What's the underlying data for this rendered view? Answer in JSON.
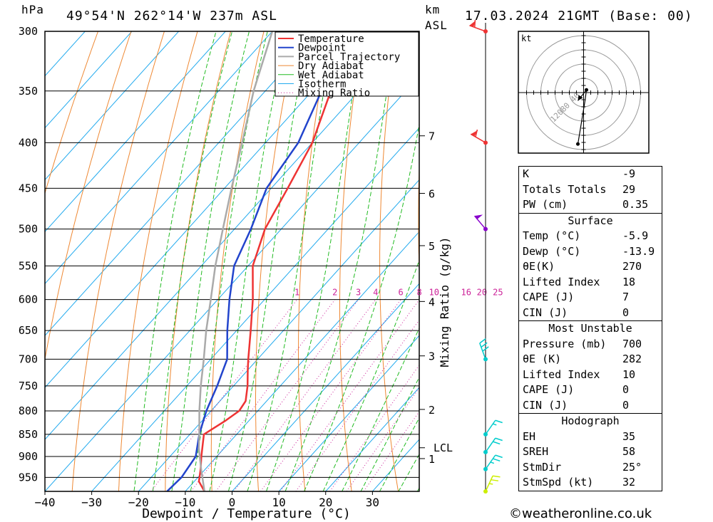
{
  "header": {
    "pressure_unit": "hPa",
    "location": "49°54'N  262°14'W  237m  ASL",
    "km_unit": "km",
    "asl_unit": "ASL",
    "datetime": "17.03.2024  21GMT  (Base: 00)"
  },
  "chart_data": {
    "type": "line",
    "subtype": "skew-T log-P diagram",
    "xlabel": "Dewpoint / Temperature (°C)",
    "ylabel_right": "Mixing Ratio (g/kg)",
    "x_ticks": [
      -40,
      -30,
      -20,
      -10,
      0,
      10,
      20,
      30
    ],
    "x_range": [
      -40,
      40
    ],
    "pressure_levels": [
      300,
      350,
      400,
      450,
      500,
      550,
      600,
      650,
      700,
      750,
      800,
      850,
      900,
      950
    ],
    "p_range": [
      300,
      985
    ],
    "height_km_ticks": [
      {
        "km": "1",
        "p": 905
      },
      {
        "km": "2",
        "p": 797
      },
      {
        "km": "3",
        "p": 694
      },
      {
        "km": "4",
        "p": 603
      },
      {
        "km": "5",
        "p": 522
      },
      {
        "km": "6",
        "p": 456
      },
      {
        "km": "7",
        "p": 393
      }
    ],
    "lcl": {
      "label": "LCL",
      "p": 880
    },
    "mixing_ratio_labels": [
      "1",
      "2",
      "3",
      "4",
      "6",
      "8",
      "10",
      "16",
      "20",
      "25"
    ],
    "mixing_ratio_values": [
      1,
      2,
      3,
      4,
      6,
      8,
      10,
      16,
      20,
      25
    ],
    "mixing_ratio_label_p": 600,
    "legend": [
      "Temperature",
      "Dewpoint",
      "Parcel Trajectory",
      "Dry Adiabat",
      "Wet Adiabat",
      "Isotherm",
      "Mixing Ratio"
    ],
    "legend_position": "top-right",
    "series": [
      {
        "name": "Temperature",
        "color": "#ee3333",
        "points": [
          [
            985,
            -5.9
          ],
          [
            960,
            -9
          ],
          [
            930,
            -11
          ],
          [
            900,
            -13.3
          ],
          [
            870,
            -15.5
          ],
          [
            850,
            -17
          ],
          [
            820,
            -15
          ],
          [
            800,
            -14
          ],
          [
            780,
            -14.5
          ],
          [
            750,
            -17
          ],
          [
            720,
            -20
          ],
          [
            700,
            -22
          ],
          [
            650,
            -27
          ],
          [
            600,
            -32.5
          ],
          [
            550,
            -39
          ],
          [
            500,
            -43.5
          ],
          [
            450,
            -46.5
          ],
          [
            400,
            -50
          ],
          [
            350,
            -56
          ],
          [
            300,
            -63
          ]
        ]
      },
      {
        "name": "Dewpoint",
        "color": "#2244cc",
        "points": [
          [
            985,
            -13.9
          ],
          [
            950,
            -13.5
          ],
          [
            900,
            -14.5
          ],
          [
            850,
            -18
          ],
          [
            800,
            -21
          ],
          [
            750,
            -23.5
          ],
          [
            700,
            -26.5
          ],
          [
            650,
            -32
          ],
          [
            600,
            -37.5
          ],
          [
            550,
            -43
          ],
          [
            500,
            -46.5
          ],
          [
            450,
            -51
          ],
          [
            400,
            -53
          ],
          [
            350,
            -58
          ],
          [
            300,
            -66
          ]
        ]
      },
      {
        "name": "Parcel Trajectory",
        "color": "#aaaaaa",
        "points": [
          [
            985,
            -5.9
          ],
          [
            930,
            -10.9
          ],
          [
            880,
            -15.5
          ],
          [
            850,
            -18
          ],
          [
            800,
            -22.5
          ],
          [
            750,
            -27
          ],
          [
            700,
            -31.5
          ],
          [
            650,
            -36.5
          ],
          [
            600,
            -41.5
          ],
          [
            550,
            -47
          ],
          [
            500,
            -52.5
          ],
          [
            450,
            -58.5
          ],
          [
            400,
            -65
          ],
          [
            350,
            -72.5
          ],
          [
            300,
            -80
          ]
        ]
      }
    ],
    "wind_profile": [
      {
        "p": 985,
        "dir": 25,
        "kt": 25,
        "color": "#ccee00"
      },
      {
        "p": 930,
        "dir": 35,
        "kt": 25,
        "color": "#00cccc"
      },
      {
        "p": 890,
        "dir": 35,
        "kt": 20,
        "color": "#00cccc"
      },
      {
        "p": 850,
        "dir": 35,
        "kt": 15,
        "color": "#00cccc"
      },
      {
        "p": 700,
        "dir": 340,
        "kt": 30,
        "color": "#00cccc"
      },
      {
        "p": 500,
        "dir": 320,
        "kt": 50,
        "color": "#8800cc"
      },
      {
        "p": 400,
        "dir": 300,
        "kt": 60,
        "color": "#ee3333"
      },
      {
        "p": 300,
        "dir": 290,
        "kt": 60,
        "color": "#ee3333"
      }
    ]
  },
  "hodograph": {
    "unit": "kt",
    "rings": [
      "40",
      "80",
      "120"
    ],
    "trace": [
      [
        4,
        2
      ],
      [
        2,
        -6
      ],
      [
        -8,
        -38
      ]
    ],
    "storm_motion": [
      -8,
      -6
    ]
  },
  "indices": {
    "top": [
      {
        "label": "K",
        "value": "-9"
      },
      {
        "label": "Totals Totals",
        "value": "29"
      },
      {
        "label": "PW (cm)",
        "value": "0.35"
      }
    ],
    "surface": {
      "title": "Surface",
      "rows": [
        {
          "label": "Temp (°C)",
          "value": "-5.9"
        },
        {
          "label": "Dewp (°C)",
          "value": "-13.9"
        },
        {
          "label": "θE(K)",
          "value": "270"
        },
        {
          "label": "Lifted Index",
          "value": "18"
        },
        {
          "label": "CAPE (J)",
          "value": "7"
        },
        {
          "label": "CIN (J)",
          "value": "0"
        }
      ]
    },
    "most_unstable": {
      "title": "Most Unstable",
      "rows": [
        {
          "label": "Pressure (mb)",
          "value": "700"
        },
        {
          "label": "θE (K)",
          "value": "282"
        },
        {
          "label": "Lifted Index",
          "value": "10"
        },
        {
          "label": "CAPE (J)",
          "value": "0"
        },
        {
          "label": "CIN (J)",
          "value": "0"
        }
      ]
    },
    "hodograph": {
      "title": "Hodograph",
      "rows": [
        {
          "label": "EH",
          "value": "35"
        },
        {
          "label": "SREH",
          "value": "58"
        },
        {
          "label": "StmDir",
          "value": "25°"
        },
        {
          "label": "StmSpd (kt)",
          "value": "32"
        }
      ]
    }
  },
  "footer": {
    "credit": "©weatheronline.co.uk"
  }
}
